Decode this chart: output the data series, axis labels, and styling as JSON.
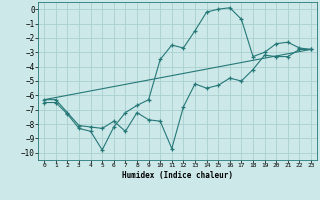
{
  "xlabel": "Humidex (Indice chaleur)",
  "bg_color": "#cce8e8",
  "line_color": "#267878",
  "grid_color": "#aad0d0",
  "xlim": [
    -0.5,
    23.5
  ],
  "ylim": [
    -10.5,
    0.5
  ],
  "xticks": [
    0,
    1,
    2,
    3,
    4,
    5,
    6,
    7,
    8,
    9,
    10,
    11,
    12,
    13,
    14,
    15,
    16,
    17,
    18,
    19,
    20,
    21,
    22,
    23
  ],
  "yticks": [
    0,
    -1,
    -2,
    -3,
    -4,
    -5,
    -6,
    -7,
    -8,
    -9,
    -10
  ],
  "line1_x": [
    0,
    1,
    2,
    3,
    4,
    5,
    6,
    7,
    8,
    9,
    10,
    11,
    12,
    13,
    14,
    15,
    16,
    17,
    18,
    19,
    20,
    21,
    22,
    23
  ],
  "line1_y": [
    -6.3,
    -6.3,
    -7.2,
    -8.1,
    -8.2,
    -8.3,
    -7.8,
    -8.5,
    -7.2,
    -7.7,
    -7.8,
    -9.7,
    -6.8,
    -5.2,
    -5.5,
    -5.3,
    -4.8,
    -5.0,
    -4.2,
    -3.2,
    -3.3,
    -3.3,
    -2.8,
    -2.8
  ],
  "line2_x": [
    0,
    1,
    2,
    3,
    4,
    5,
    6,
    7,
    8,
    9,
    10,
    11,
    12,
    13,
    14,
    15,
    16,
    17,
    18,
    19,
    20,
    21,
    22,
    23
  ],
  "line2_y": [
    -6.5,
    -6.5,
    -7.3,
    -8.3,
    -8.5,
    -9.8,
    -8.2,
    -7.2,
    -6.7,
    -6.3,
    -3.5,
    -2.5,
    -2.7,
    -1.5,
    -0.2,
    0.0,
    0.1,
    -0.7,
    -3.3,
    -3.0,
    -2.4,
    -2.3,
    -2.7,
    -2.8
  ],
  "line3_x": [
    0,
    23
  ],
  "line3_y": [
    -6.3,
    -2.8
  ]
}
